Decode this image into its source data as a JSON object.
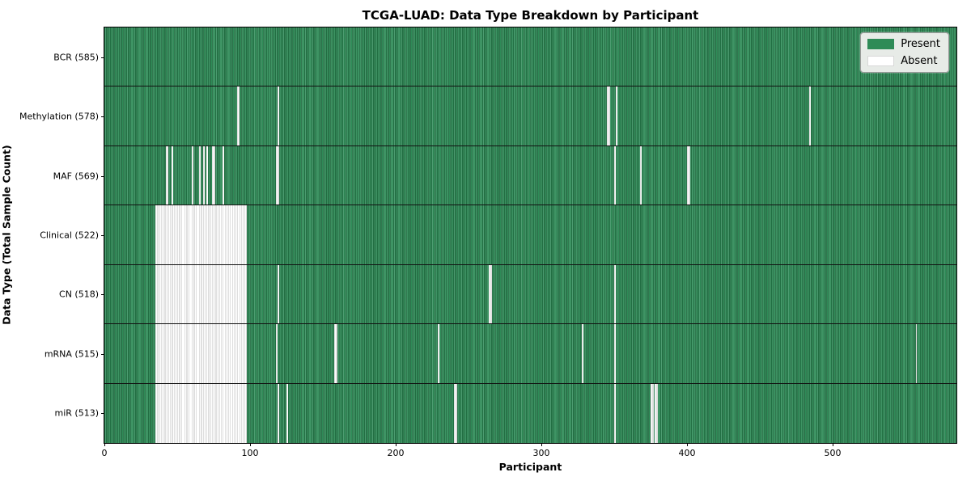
{
  "chart_data": {
    "type": "heatmap",
    "title": "TCGA-LUAD: Data Type Breakdown by Participant",
    "xlabel": "Participant",
    "ylabel": "Data Type (Total Sample Count)",
    "total_participants": 585,
    "x_max": 585,
    "x_ticks": [
      0,
      100,
      200,
      300,
      400,
      500
    ],
    "legend_position": "upper right",
    "grid": false,
    "colors": {
      "present": "#2e8b57",
      "present_dark_edge": "#17532f",
      "present_light": "#4d9c71",
      "absent": "#ffffff",
      "absent_stripe": "#bfbfbf"
    },
    "legend": [
      {
        "label": "Present",
        "color": "#2e8b57"
      },
      {
        "label": "Absent",
        "color": "#ffffff"
      }
    ],
    "rows": [
      {
        "label": "BCR (585)",
        "data_type": "BCR",
        "present_count": 585,
        "absent_ranges": []
      },
      {
        "label": "Methylation (578)",
        "data_type": "Methylation",
        "present_count": 578,
        "absent_ranges": [
          [
            91,
            92
          ],
          [
            119,
            119
          ],
          [
            345,
            346
          ],
          [
            351,
            351
          ],
          [
            484,
            484
          ]
        ]
      },
      {
        "label": "MAF (569)",
        "data_type": "MAF",
        "present_count": 569,
        "absent_ranges": [
          [
            42,
            43
          ],
          [
            46,
            46
          ],
          [
            60,
            60
          ],
          [
            65,
            65
          ],
          [
            68,
            68
          ],
          [
            70,
            70
          ],
          [
            74,
            75
          ],
          [
            81,
            81
          ],
          [
            118,
            119
          ],
          [
            350,
            350
          ],
          [
            368,
            368
          ],
          [
            400,
            401
          ]
        ]
      },
      {
        "label": "Clinical (522)",
        "data_type": "Clinical",
        "present_count": 522,
        "absent_ranges": [
          [
            35,
            97
          ]
        ]
      },
      {
        "label": "CN (518)",
        "data_type": "CN",
        "present_count": 518,
        "absent_ranges": [
          [
            35,
            97
          ],
          [
            119,
            119
          ],
          [
            264,
            265
          ],
          [
            350,
            350
          ]
        ]
      },
      {
        "label": "mRNA (515)",
        "data_type": "mRNA",
        "present_count": 515,
        "absent_ranges": [
          [
            35,
            97
          ],
          [
            118,
            118
          ],
          [
            158,
            159
          ],
          [
            229,
            229
          ],
          [
            328,
            328
          ],
          [
            350,
            350
          ],
          [
            557,
            557
          ]
        ]
      },
      {
        "label": "miR (513)",
        "data_type": "miR",
        "present_count": 513,
        "absent_ranges": [
          [
            35,
            97
          ],
          [
            119,
            119
          ],
          [
            125,
            125
          ],
          [
            240,
            241
          ],
          [
            350,
            350
          ],
          [
            375,
            376
          ],
          [
            378,
            379
          ]
        ]
      }
    ]
  }
}
